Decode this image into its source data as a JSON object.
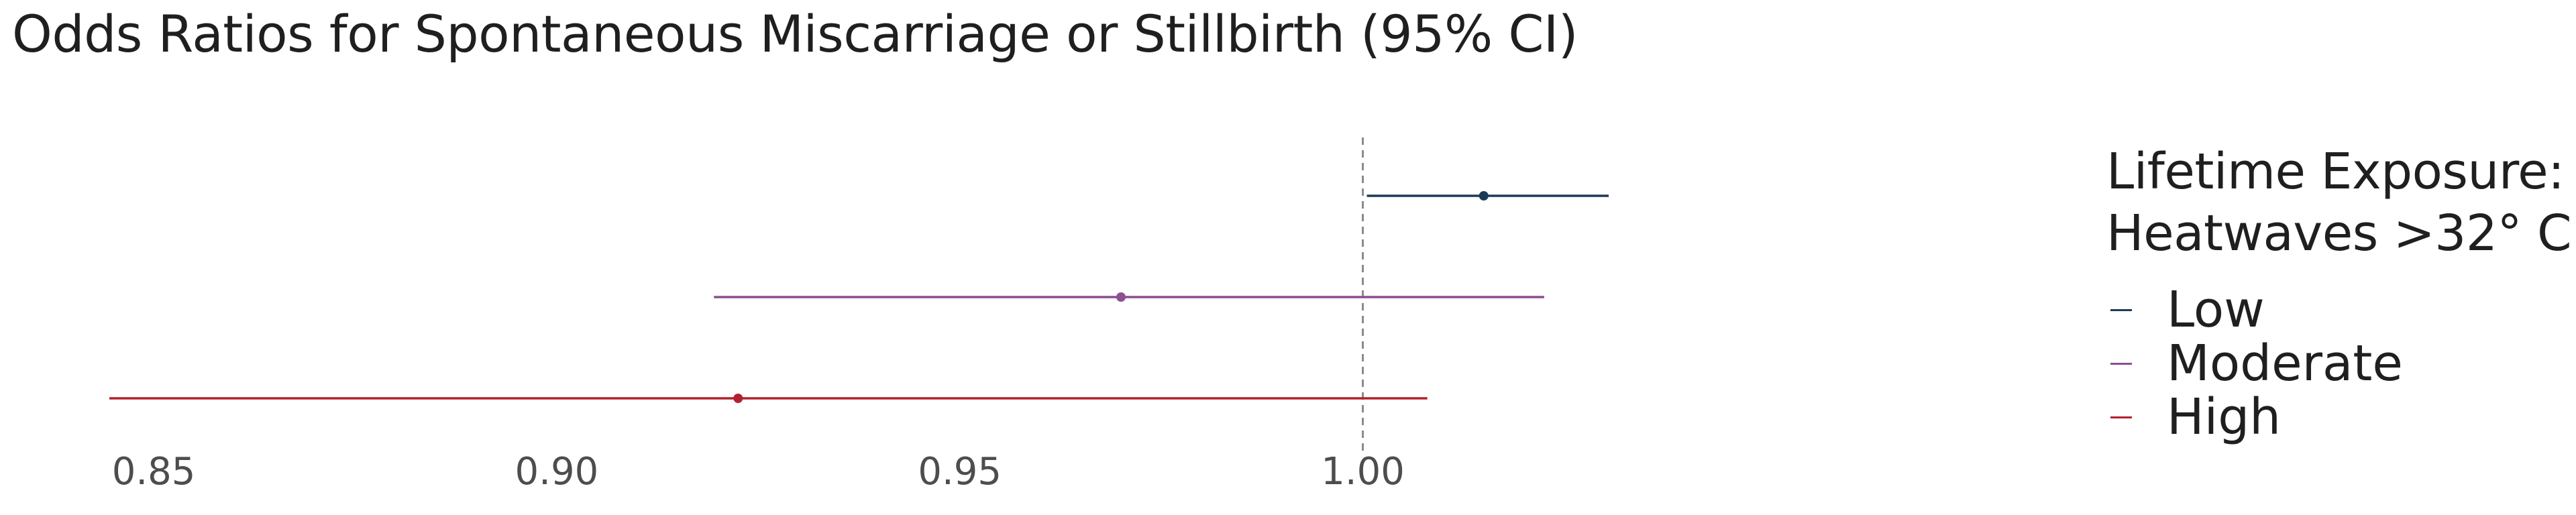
{
  "chart_data": {
    "type": "forest",
    "title": "Odds Ratios for Spontaneous Miscarriage or Stillbirth (95% CI)",
    "xlabel": "",
    "ylabel": "",
    "xlim": [
      0.8445,
      1.09
    ],
    "x_ticks": [
      "0.85",
      "0.90",
      "0.95",
      "1.00"
    ],
    "reference_line": 1.0,
    "grid": false,
    "legend": {
      "title": [
        "Lifetime Exposure:",
        "Heatwaves >32° C"
      ],
      "position": "right"
    },
    "series": [
      {
        "name": "Low",
        "estimate": 1.015,
        "lower": 1.0005,
        "upper": 1.0305,
        "color": "#1b3a57"
      },
      {
        "name": "Moderate",
        "estimate": 0.97,
        "lower": 0.9195,
        "upper": 1.0225,
        "color": "#8c4f91"
      },
      {
        "name": "High",
        "estimate": 0.9225,
        "lower": 0.8445,
        "upper": 1.008,
        "color": "#b3202e"
      }
    ]
  }
}
